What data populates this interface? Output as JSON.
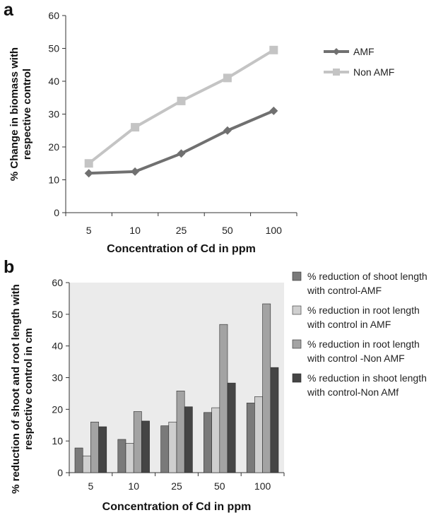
{
  "chart_data": [
    {
      "panel_label": "a",
      "type": "line",
      "title": "",
      "xlabel": "Concentration of Cd in ppm",
      "ylabel": "% Change in biomass with respective control",
      "ylabel_lines": [
        "% Change in biomass with",
        "respective control"
      ],
      "categories": [
        "5",
        "10",
        "25",
        "50",
        "100"
      ],
      "ylim": [
        0,
        60
      ],
      "yticks": [
        0,
        10,
        20,
        30,
        40,
        50,
        60
      ],
      "grid": false,
      "legend_position": "right",
      "series": [
        {
          "name": "AMF",
          "marker": "diamond",
          "color": "#707070",
          "values": [
            12,
            12.5,
            18,
            25,
            31
          ]
        },
        {
          "name": "Non AMF",
          "marker": "square",
          "color": "#c4c4c4",
          "values": [
            15,
            26,
            34,
            41,
            49.5
          ]
        }
      ]
    },
    {
      "panel_label": "b",
      "type": "bar",
      "title": "",
      "xlabel": "Concentration of Cd in ppm",
      "ylabel": "% reduction of shoot and root length with respective control in cm",
      "ylabel_lines": [
        "% reduction of shoot and root length with",
        "respective control in cm"
      ],
      "categories": [
        "5",
        "10",
        "25",
        "50",
        "100"
      ],
      "ylim": [
        0,
        60
      ],
      "yticks": [
        0,
        10,
        20,
        30,
        40,
        50,
        60
      ],
      "grid": false,
      "plot_background": "#ebebeb",
      "legend_position": "right",
      "series": [
        {
          "name": "% reduction of shoot length with control-AMF",
          "legend_lines": [
            "% reduction of shoot length",
            "with control-AMF"
          ],
          "color": "#7a7a7a",
          "values": [
            7.8,
            10.5,
            14.8,
            19,
            22
          ]
        },
        {
          "name": "% reduction in root length with control in AMF",
          "legend_lines": [
            "% reduction in root length",
            "with control in AMF"
          ],
          "color": "#cfcfcf",
          "values": [
            5.3,
            9.3,
            16,
            20.5,
            24
          ]
        },
        {
          "name": "% reduction in root length with control -Non AMF",
          "legend_lines": [
            "% reduction in root length",
            "with control -Non AMF"
          ],
          "color": "#a3a3a3",
          "values": [
            16,
            19.3,
            25.8,
            46.8,
            53.3
          ]
        },
        {
          "name": "% reduction in shoot length with control-Non AMf",
          "legend_lines": [
            "% reduction in shoot length",
            "with control-Non AMf"
          ],
          "color": "#454545",
          "values": [
            14.5,
            16.3,
            20.8,
            28.3,
            33.2
          ]
        }
      ]
    }
  ]
}
